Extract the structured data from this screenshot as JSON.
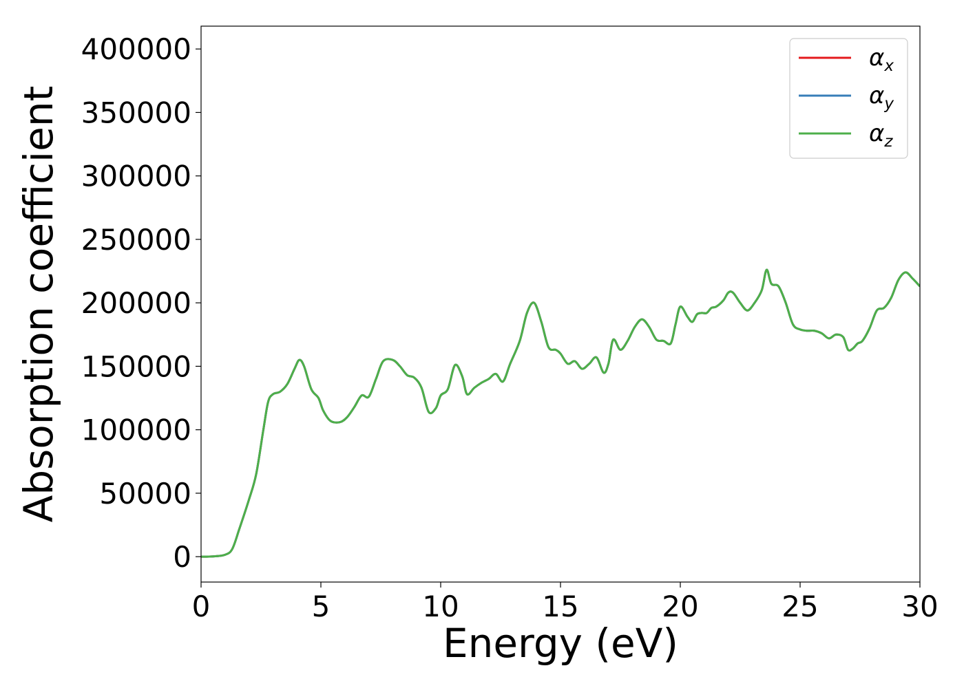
{
  "chart_data": {
    "type": "line",
    "xlabel": "Energy (eV)",
    "ylabel": "Absorption coefficient",
    "xlim": [
      0,
      30
    ],
    "ylim": [
      -20000,
      418000
    ],
    "xticks": [
      0,
      5,
      10,
      15,
      20,
      25,
      30
    ],
    "yticks": [
      0,
      50000,
      100000,
      150000,
      200000,
      250000,
      300000,
      350000,
      400000
    ],
    "grid": false,
    "legend_position": "top-right",
    "x": [
      0,
      0.5,
      1.0,
      1.3,
      1.6,
      2.0,
      2.3,
      2.6,
      2.8,
      3.0,
      3.3,
      3.6,
      3.9,
      4.1,
      4.3,
      4.6,
      4.9,
      5.1,
      5.4,
      5.8,
      6.1,
      6.4,
      6.7,
      7.0,
      7.3,
      7.6,
      8.0,
      8.3,
      8.6,
      8.9,
      9.2,
      9.5,
      9.8,
      10.0,
      10.3,
      10.6,
      10.9,
      11.1,
      11.4,
      11.7,
      12.0,
      12.3,
      12.6,
      12.9,
      13.3,
      13.6,
      13.9,
      14.2,
      14.5,
      14.8,
      15.0,
      15.3,
      15.6,
      15.9,
      16.2,
      16.5,
      16.8,
      17.0,
      17.2,
      17.5,
      17.8,
      18.1,
      18.4,
      18.7,
      19.0,
      19.3,
      19.6,
      19.8,
      20.0,
      20.3,
      20.5,
      20.7,
      20.9,
      21.1,
      21.3,
      21.5,
      21.8,
      22.0,
      22.2,
      22.5,
      22.8,
      23.1,
      23.4,
      23.6,
      23.8,
      24.1,
      24.4,
      24.7,
      25.0,
      25.3,
      25.6,
      25.9,
      26.2,
      26.5,
      26.8,
      27.0,
      27.2,
      27.4,
      27.6,
      27.9,
      28.2,
      28.5,
      28.8,
      29.1,
      29.4,
      29.7,
      30.0
    ],
    "series": [
      {
        "name": "α_x",
        "label_base": "α",
        "label_sub": "x",
        "color": "#e41a1c",
        "values": [
          0,
          200,
          1500,
          6000,
          22000,
          45000,
          65000,
          100000,
          122000,
          128000,
          130000,
          136000,
          148000,
          155000,
          150000,
          132000,
          125000,
          115000,
          107000,
          106000,
          110000,
          118000,
          127000,
          126000,
          140000,
          154000,
          155000,
          150000,
          143000,
          141000,
          133000,
          114000,
          117000,
          127000,
          132000,
          151000,
          142000,
          128000,
          133000,
          137000,
          140000,
          144000,
          138000,
          152000,
          170000,
          192000,
          200000,
          185000,
          165000,
          163000,
          160000,
          152000,
          154000,
          148000,
          152000,
          157000,
          145000,
          152000,
          171000,
          163000,
          170000,
          181000,
          187000,
          181000,
          171000,
          170000,
          168000,
          183000,
          197000,
          189000,
          185000,
          191000,
          192000,
          192000,
          196000,
          197000,
          202000,
          208000,
          208000,
          200000,
          194000,
          200000,
          210000,
          226000,
          215000,
          213000,
          200000,
          183000,
          179000,
          178000,
          178000,
          176000,
          172000,
          175000,
          173000,
          163000,
          164000,
          168000,
          170000,
          180000,
          194000,
          196000,
          204000,
          218000,
          224000,
          219000,
          213000
        ]
      },
      {
        "name": "α_y",
        "label_base": "α",
        "label_sub": "y",
        "color": "#377eb8",
        "values": [
          0,
          200,
          1500,
          6000,
          22000,
          45000,
          65000,
          100000,
          122000,
          128000,
          130000,
          136000,
          148000,
          155000,
          150000,
          132000,
          125000,
          115000,
          107000,
          106000,
          110000,
          118000,
          127000,
          126000,
          140000,
          154000,
          155000,
          150000,
          143000,
          141000,
          133000,
          114000,
          117000,
          127000,
          132000,
          151000,
          142000,
          128000,
          133000,
          137000,
          140000,
          144000,
          138000,
          152000,
          170000,
          192000,
          200000,
          185000,
          165000,
          163000,
          160000,
          152000,
          154000,
          148000,
          152000,
          157000,
          145000,
          152000,
          171000,
          163000,
          170000,
          181000,
          187000,
          181000,
          171000,
          170000,
          168000,
          183000,
          197000,
          189000,
          185000,
          191000,
          192000,
          192000,
          196000,
          197000,
          202000,
          208000,
          208000,
          200000,
          194000,
          200000,
          210000,
          226000,
          215000,
          213000,
          200000,
          183000,
          179000,
          178000,
          178000,
          176000,
          172000,
          175000,
          173000,
          163000,
          164000,
          168000,
          170000,
          180000,
          194000,
          196000,
          204000,
          218000,
          224000,
          219000,
          213000
        ]
      },
      {
        "name": "α_z",
        "label_base": "α",
        "label_sub": "z",
        "color": "#4daf4a",
        "values": [
          0,
          200,
          1500,
          6000,
          22000,
          45000,
          65000,
          100000,
          122000,
          128000,
          130000,
          136000,
          148000,
          155000,
          150000,
          132000,
          125000,
          115000,
          107000,
          106000,
          110000,
          118000,
          127000,
          126000,
          140000,
          154000,
          155000,
          150000,
          143000,
          141000,
          133000,
          114000,
          117000,
          127000,
          132000,
          151000,
          142000,
          128000,
          133000,
          137000,
          140000,
          144000,
          138000,
          152000,
          170000,
          192000,
          200000,
          185000,
          165000,
          163000,
          160000,
          152000,
          154000,
          148000,
          152000,
          157000,
          145000,
          152000,
          171000,
          163000,
          170000,
          181000,
          187000,
          181000,
          171000,
          170000,
          168000,
          183000,
          197000,
          189000,
          185000,
          191000,
          192000,
          192000,
          196000,
          197000,
          202000,
          208000,
          208000,
          200000,
          194000,
          200000,
          210000,
          226000,
          215000,
          213000,
          200000,
          183000,
          179000,
          178000,
          178000,
          176000,
          172000,
          175000,
          173000,
          163000,
          164000,
          168000,
          170000,
          180000,
          194000,
          196000,
          204000,
          218000,
          224000,
          219000,
          213000
        ]
      }
    ]
  }
}
